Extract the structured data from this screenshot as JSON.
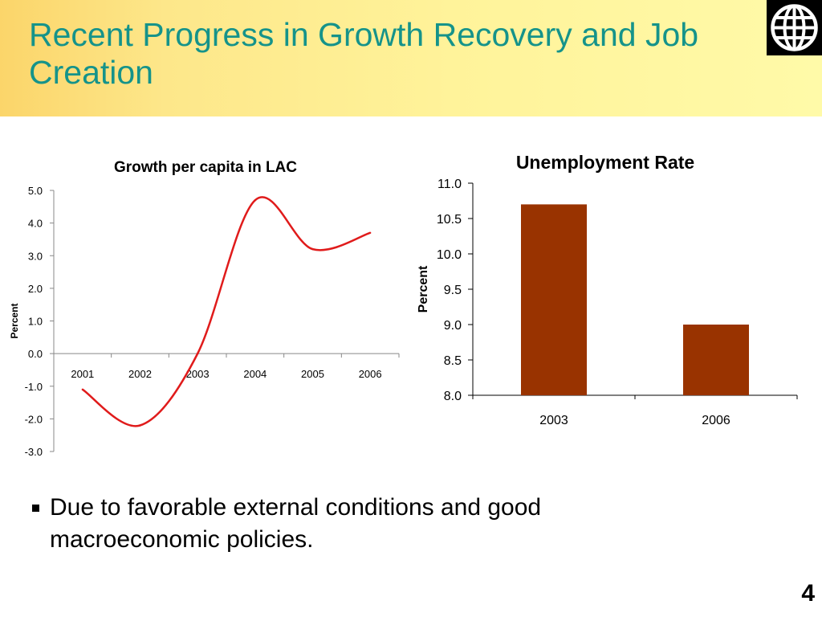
{
  "slide": {
    "title": "Recent Progress in Growth Recovery and Job Creation",
    "bullet": "Due to favorable external conditions and good macroeconomic policies.",
    "page_number": "4",
    "logo_icon": "globe-icon"
  },
  "colors": {
    "title": "#15938a",
    "line_series": "#e01b1b",
    "bar_series": "#993300"
  },
  "chart_data": [
    {
      "type": "line",
      "title": "Growth per capita in LAC",
      "xlabel": "",
      "ylabel": "Percent",
      "ylim": [
        -3.0,
        5.0
      ],
      "y_ticks": [
        "5.0",
        "4.0",
        "3.0",
        "2.0",
        "1.0",
        "0.0",
        "-1.0",
        "-2.0",
        "-3.0"
      ],
      "x_tick_labels": [
        "2001",
        "2002",
        "2003",
        "2004",
        "2005",
        "2006"
      ],
      "x_label_position": "along zero line",
      "grid": false,
      "series": [
        {
          "x": [
            2001,
            2002,
            2003,
            2004,
            2005,
            2006
          ],
          "values": [
            -1.1,
            -2.2,
            0.0,
            4.7,
            3.2,
            3.7
          ]
        }
      ]
    },
    {
      "type": "bar",
      "title": "Unemployment Rate",
      "xlabel": "",
      "ylabel": "Percent",
      "ylim": [
        8.0,
        11.0
      ],
      "y_ticks": [
        "11.0",
        "10.5",
        "10.0",
        "9.5",
        "9.0",
        "8.5",
        "8.0"
      ],
      "categories": [
        "2003",
        "2006"
      ],
      "values": [
        10.7,
        9.0
      ],
      "grid": false
    }
  ]
}
